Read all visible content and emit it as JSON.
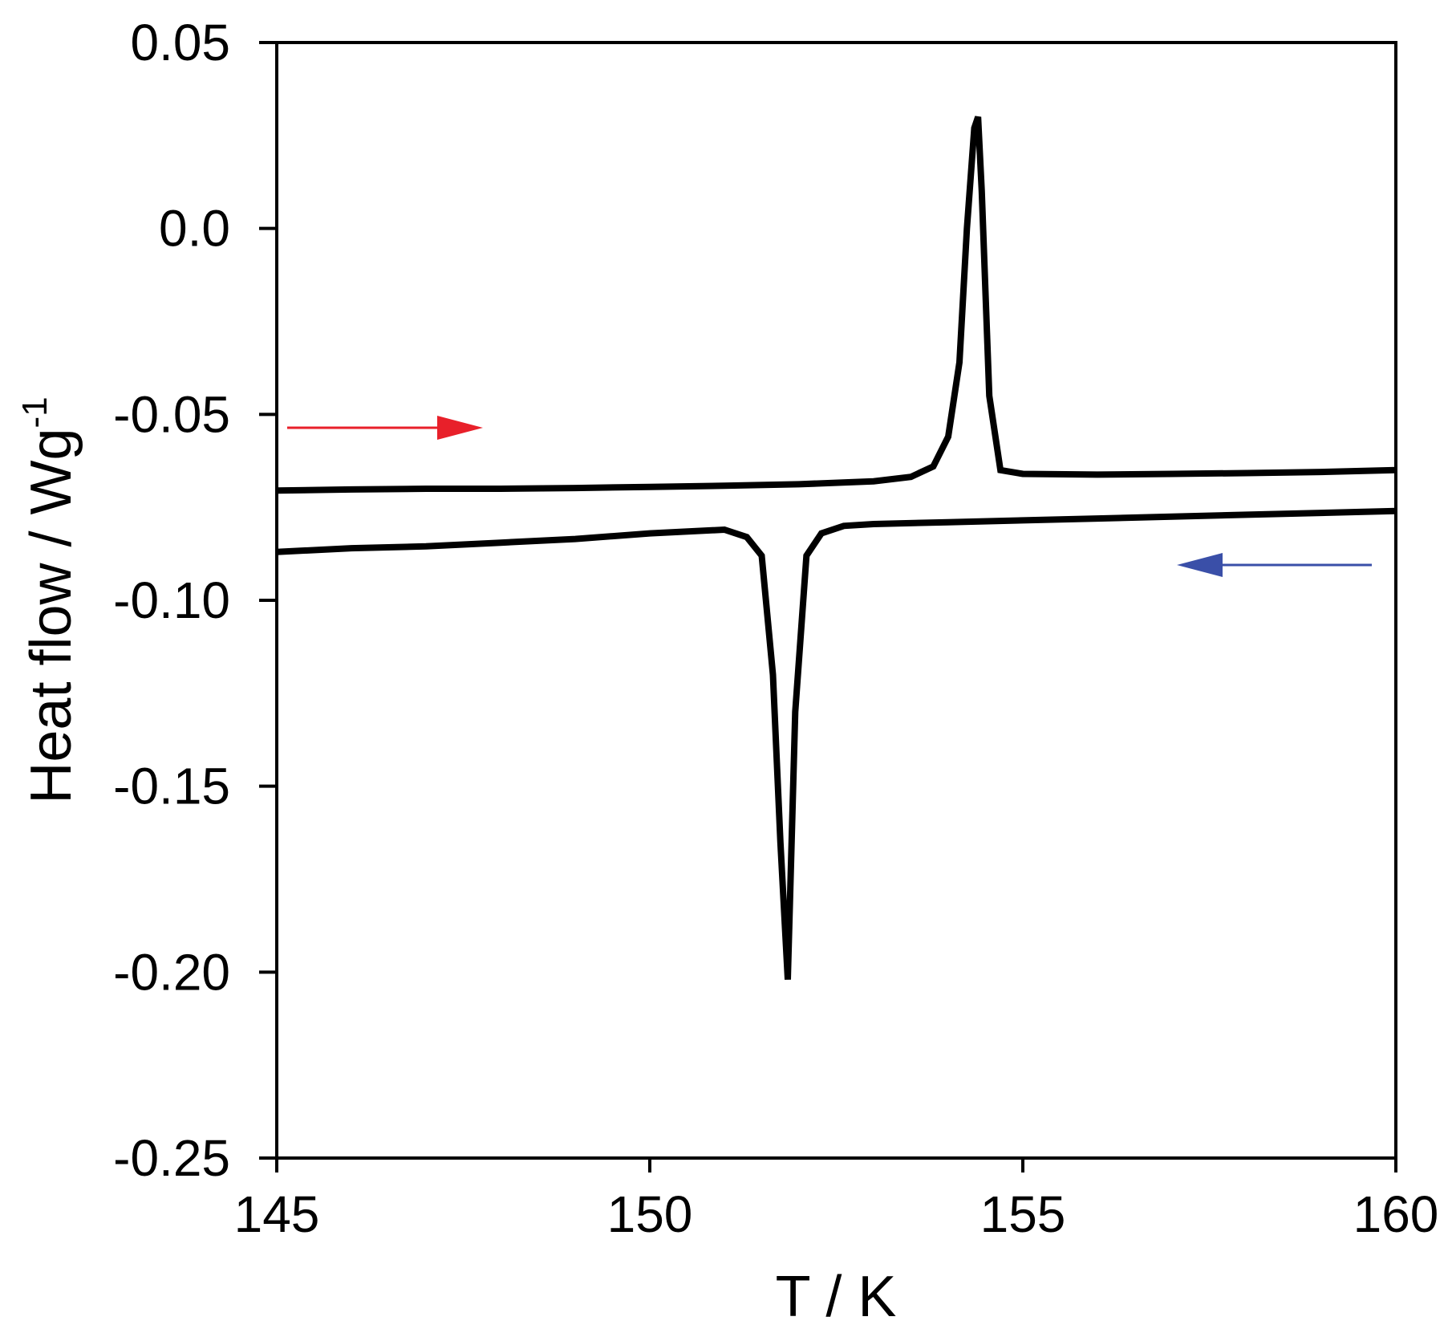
{
  "chart_data": {
    "type": "line",
    "title": "",
    "xlabel": "T / K",
    "ylabel": "Heat flow / Wg",
    "ylabel_superscript": "-1",
    "xlim": [
      145,
      160
    ],
    "ylim": [
      -0.25,
      0.05
    ],
    "x_ticks": [
      "145",
      "150",
      "155",
      "160"
    ],
    "y_ticks": [
      "0.05",
      "0.0",
      "-0.05",
      "-0.10",
      "-0.15",
      "-0.20",
      "-0.25"
    ],
    "grid": false,
    "legend": "none",
    "colors": {
      "line": "#000000",
      "heating_arrow": "#e8202a",
      "cooling_arrow": "#3a4fa8"
    },
    "series": [
      {
        "direction": "heating",
        "arrow": "right",
        "x": [
          145,
          146,
          147,
          148,
          149,
          150,
          151,
          152,
          153,
          153.5,
          153.8,
          154.0,
          154.15,
          154.25,
          154.35,
          154.4,
          154.45,
          154.55,
          154.7,
          155,
          156,
          157,
          158,
          159,
          160
        ],
        "y": [
          -0.0705,
          -0.0702,
          -0.07,
          -0.07,
          -0.0698,
          -0.0695,
          -0.0692,
          -0.0688,
          -0.068,
          -0.0668,
          -0.064,
          -0.056,
          -0.036,
          0.0,
          0.027,
          0.03,
          0.01,
          -0.045,
          -0.065,
          -0.066,
          -0.0662,
          -0.066,
          -0.0658,
          -0.0655,
          -0.065
        ]
      },
      {
        "direction": "cooling",
        "arrow": "left",
        "x": [
          145,
          146,
          147,
          148,
          149,
          150,
          151,
          151.3,
          151.5,
          151.65,
          151.75,
          151.85,
          151.95,
          152.1,
          152.3,
          152.6,
          153,
          154,
          155,
          156,
          157,
          158,
          159,
          160
        ],
        "y": [
          -0.087,
          -0.086,
          -0.0855,
          -0.0845,
          -0.0835,
          -0.082,
          -0.081,
          -0.083,
          -0.088,
          -0.12,
          -0.165,
          -0.202,
          -0.13,
          -0.088,
          -0.082,
          -0.08,
          -0.0795,
          -0.079,
          -0.0785,
          -0.078,
          -0.0775,
          -0.077,
          -0.0765,
          -0.076
        ]
      }
    ]
  }
}
